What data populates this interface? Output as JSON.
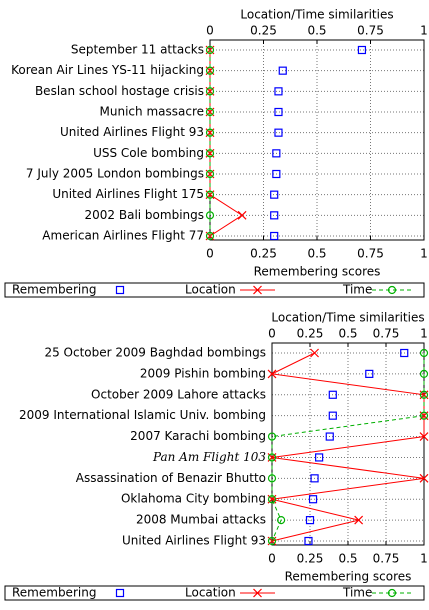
{
  "chart_data": [
    {
      "type": "dot",
      "xlabel": "Remembering scores",
      "x2label": "Location/Time similarities",
      "categories": [
        "September 11 attacks",
        "Korean Air Lines YS-11 hijacking",
        "Beslan school hostage crisis",
        "Munich massacre",
        "United Airlines Flight 93",
        "USS Cole bombing",
        "7 July 2005 London bombings",
        "United Airlines Flight 175",
        "2002 Bali bombings",
        "American Airlines Flight 77"
      ],
      "series": [
        {
          "name": "Remembering",
          "color": "#0000ff",
          "marker": "square",
          "linestyle": "none",
          "axis": "x",
          "values": [
            0.71,
            0.34,
            0.32,
            0.32,
            0.32,
            0.31,
            0.31,
            0.3,
            0.3,
            0.3
          ]
        },
        {
          "name": "Location",
          "color": "#ff0000",
          "marker": "x",
          "linestyle": "solid",
          "axis": "x2",
          "values": [
            0,
            0,
            0,
            0,
            0,
            0,
            0,
            0,
            0.15,
            0
          ]
        },
        {
          "name": "Time",
          "color": "#00b000",
          "marker": "circle",
          "linestyle": "dashed",
          "axis": "x2",
          "values": [
            0,
            0,
            0,
            0,
            0,
            0,
            0,
            0,
            0,
            0
          ]
        }
      ],
      "xlim": [
        0,
        1
      ],
      "xticks": [
        0,
        0.25,
        0.5,
        0.75,
        1
      ],
      "x2lim": [
        0,
        1
      ],
      "x2ticks": [
        0,
        0.25,
        0.5,
        0.75,
        1
      ],
      "grid": true
    },
    {
      "type": "dot",
      "xlabel": "Remembering scores",
      "x2label": "Location/Time similarities",
      "categories": [
        "25 October 2009 Baghdad bombings",
        "2009 Pishin bombing",
        "October 2009 Lahore attacks",
        "2009 International Islamic Univ. bombing",
        "2007 Karachi bombing",
        "Pan Am Flight 103",
        "Assassination of Benazir Bhutto",
        "Oklahoma City bombing",
        "2008 Mumbai attacks",
        "United Airlines Flight 93"
      ],
      "series": [
        {
          "name": "Remembering",
          "color": "#0000ff",
          "marker": "square",
          "linestyle": "none",
          "axis": "x",
          "values": [
            0.87,
            0.64,
            0.4,
            0.4,
            0.38,
            0.31,
            0.28,
            0.27,
            0.25,
            0.24
          ]
        },
        {
          "name": "Location",
          "color": "#ff0000",
          "marker": "x",
          "linestyle": "solid",
          "axis": "x2",
          "values": [
            0.28,
            0,
            1,
            1,
            1,
            0,
            1,
            0,
            0.57,
            0
          ]
        },
        {
          "name": "Time",
          "color": "#00b000",
          "marker": "circle",
          "linestyle": "dashed",
          "axis": "x2",
          "values": [
            1,
            1,
            1,
            1,
            0,
            0,
            0,
            0,
            0.06,
            0
          ]
        }
      ],
      "xlim": [
        0,
        1
      ],
      "xticks": [
        0,
        0.25,
        0.5,
        0.75,
        1
      ],
      "x2lim": [
        0,
        1
      ],
      "x2ticks": [
        0,
        0.25,
        0.5,
        0.75,
        1
      ],
      "grid": true
    }
  ]
}
